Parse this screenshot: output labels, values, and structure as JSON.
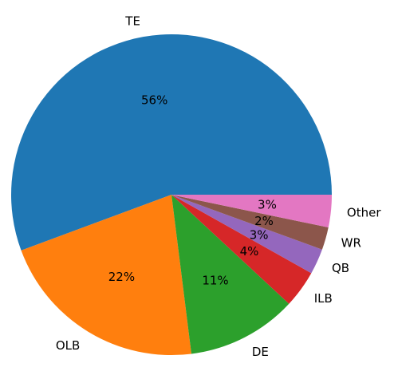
{
  "chart_data": {
    "type": "pie",
    "title": "",
    "start_angle_deg": 0,
    "direction": "counterclockwise",
    "legend": "none",
    "slices": [
      {
        "label": "TE",
        "value": 56.1,
        "pct_label": "56%",
        "color": "#1f77b4"
      },
      {
        "label": "OLB",
        "value": 21.5,
        "pct_label": "22%",
        "color": "#ff7f0e"
      },
      {
        "label": "DE",
        "value": 11.2,
        "pct_label": "11%",
        "color": "#2ca02c"
      },
      {
        "label": "ILB",
        "value": 3.8,
        "pct_label": "4%",
        "color": "#d62728"
      },
      {
        "label": "QB",
        "value": 2.6,
        "pct_label": "3%",
        "color": "#9467bd"
      },
      {
        "label": "WR",
        "value": 2.3,
        "pct_label": "2%",
        "color": "#8c564b"
      },
      {
        "label": "Other",
        "value": 3.3,
        "pct_label": "3%",
        "color": "#e377c2"
      }
    ]
  }
}
